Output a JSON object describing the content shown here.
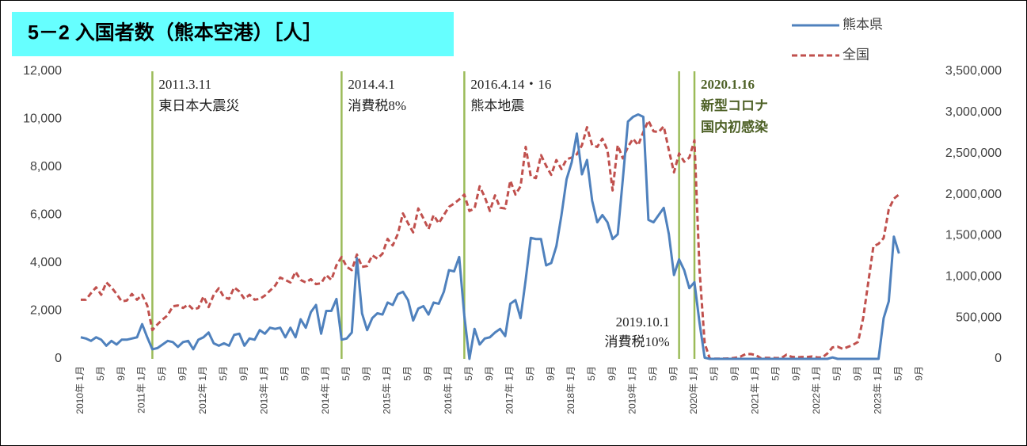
{
  "chart_data": {
    "type": "line",
    "title": "5－2 入国者数（熊本空港）［人］",
    "categories": [
      "2010年 1月",
      null,
      null,
      null,
      "5月",
      null,
      null,
      null,
      "9月",
      null,
      null,
      null,
      "2011年 1月",
      null,
      null,
      null,
      "5月",
      null,
      null,
      null,
      "9月",
      null,
      null,
      null,
      "2012年 1月",
      null,
      null,
      null,
      "5月",
      null,
      null,
      null,
      "9月",
      null,
      null,
      null,
      "2013年 1月",
      null,
      null,
      null,
      "5月",
      null,
      null,
      null,
      "9月",
      null,
      null,
      null,
      "2014年 1月",
      null,
      null,
      null,
      "5月",
      null,
      null,
      null,
      "9月",
      null,
      null,
      null,
      "2015年 1月",
      null,
      null,
      null,
      "5月",
      null,
      null,
      null,
      "9月",
      null,
      null,
      null,
      "2016年 1月",
      null,
      null,
      null,
      "5月",
      null,
      null,
      null,
      "9月",
      null,
      null,
      null,
      "2017年 1月",
      null,
      null,
      null,
      "5月",
      null,
      null,
      null,
      "9月",
      null,
      null,
      null,
      "2018年 1月",
      null,
      null,
      null,
      "5月",
      null,
      null,
      null,
      "9月",
      null,
      null,
      null,
      "2019年 1月",
      null,
      null,
      null,
      "5月",
      null,
      null,
      null,
      "9月",
      null,
      null,
      null,
      "2020年 1月",
      null,
      null,
      null,
      "5月",
      null,
      null,
      null,
      "9月",
      null,
      null,
      null,
      "2021年 1月",
      null,
      null,
      null,
      "5月",
      null,
      null,
      null,
      "9月",
      null,
      null,
      null,
      "2022年 1月",
      null,
      null,
      null,
      "5月",
      null,
      null,
      null,
      "9月",
      null,
      null,
      null,
      "2023年 1月",
      null,
      null,
      null,
      "5月",
      null,
      null,
      null,
      "9月",
      null,
      null,
      null
    ],
    "series": [
      {
        "name": "熊本県",
        "color": "#4f81bd",
        "dash": false,
        "values": [
          900,
          850,
          750,
          900,
          800,
          550,
          750,
          600,
          800,
          800,
          850,
          900,
          1450,
          900,
          400,
          450,
          600,
          750,
          700,
          500,
          700,
          750,
          400,
          800,
          900,
          1100,
          650,
          550,
          650,
          550,
          1000,
          1050,
          550,
          850,
          800,
          1200,
          1050,
          1300,
          1250,
          1300,
          900,
          1300,
          900,
          1650,
          1300,
          1950,
          2250,
          1050,
          2000,
          2000,
          2500,
          800,
          850,
          1100,
          4200,
          1900,
          1200,
          1700,
          1900,
          1850,
          2350,
          2250,
          2700,
          2800,
          2450,
          1600,
          2100,
          2200,
          1850,
          2350,
          2300,
          2800,
          3700,
          3650,
          4250,
          1800,
          0,
          1250,
          600,
          850,
          900,
          1100,
          1250,
          950,
          2300,
          2450,
          1700,
          3300,
          5050,
          5000,
          5000,
          3900,
          4000,
          4700,
          6000,
          7500,
          8200,
          9400,
          7700,
          8300,
          6600,
          5700,
          6000,
          5700,
          5000,
          5200,
          7500,
          9900,
          10100,
          10200,
          10100,
          5800,
          5700,
          6000,
          6300,
          5200,
          3500,
          4150,
          3700,
          2950,
          3200,
          1500,
          50,
          0,
          0,
          0,
          0,
          0,
          0,
          0,
          0,
          0,
          0,
          0,
          0,
          0,
          0,
          0,
          0,
          0,
          0,
          0,
          0,
          0,
          0,
          0,
          0,
          60,
          0,
          0,
          0,
          0,
          0,
          0,
          0,
          0,
          0,
          1700,
          2400,
          5100,
          4400,
          null,
          null,
          null,
          null,
          null,
          null,
          null
        ]
      },
      {
        "name": "全国",
        "color": "#c0504d",
        "dash": true,
        "axis": "y2",
        "values": [
          720000,
          720000,
          800000,
          870000,
          780000,
          930000,
          870000,
          790000,
          700000,
          710000,
          790000,
          720000,
          780000,
          650000,
          350000,
          420000,
          480000,
          530000,
          640000,
          650000,
          620000,
          660000,
          600000,
          620000,
          760000,
          630000,
          780000,
          860000,
          750000,
          730000,
          870000,
          820000,
          730000,
          780000,
          720000,
          730000,
          770000,
          830000,
          890000,
          990000,
          960000,
          930000,
          1060000,
          960000,
          930000,
          970000,
          910000,
          920000,
          1020000,
          960000,
          1140000,
          1240000,
          1120000,
          1080000,
          1270000,
          1120000,
          1130000,
          1260000,
          1220000,
          1280000,
          1460000,
          1380000,
          1520000,
          1770000,
          1650000,
          1540000,
          1830000,
          1710000,
          1580000,
          1750000,
          1650000,
          1750000,
          1850000,
          1890000,
          1940000,
          2000000,
          1800000,
          1830000,
          2100000,
          1970000,
          1800000,
          1990000,
          1840000,
          1830000,
          2170000,
          2000000,
          2100000,
          2580000,
          2220000,
          2200000,
          2480000,
          2350000,
          2240000,
          2420000,
          2310000,
          2430000,
          2450000,
          2490000,
          2600000,
          2820000,
          2600000,
          2580000,
          2680000,
          2540000,
          2050000,
          2600000,
          2440000,
          2580000,
          2680000,
          2600000,
          2760000,
          2900000,
          2770000,
          2760000,
          2830000,
          2540000,
          2270000,
          2500000,
          2400000,
          2450000,
          2660000,
          1080000,
          190000,
          3000,
          2000,
          3000,
          4000,
          5000,
          13000,
          28000,
          57000,
          59000,
          46000,
          7000,
          12000,
          11000,
          10000,
          10000,
          51000,
          25000,
          18000,
          23000,
          22000,
          29000,
          18000,
          17000,
          66000,
          140000,
          148000,
          121000,
          145000,
          170000,
          207000,
          498000,
          934000,
          1370000,
          1400000,
          1470000,
          1820000,
          1950000,
          2000000,
          null,
          null,
          null,
          null,
          null,
          null,
          null
        ]
      }
    ],
    "ylim": [
      0,
      12000
    ],
    "yticks": [
      0,
      {
        "value": 2000,
        "label": "2,000"
      },
      {
        "value": 4000,
        "label": "4,000"
      },
      {
        "value": 6000,
        "label": "6,000"
      },
      {
        "value": 8000,
        "label": "8,000"
      },
      {
        "value": 10000,
        "label": "10,000"
      },
      {
        "value": 12000,
        "label": "12,000"
      }
    ],
    "y2lim": [
      0,
      3500000
    ],
    "y2ticks": [
      0,
      {
        "value": 500000,
        "label": "500,000"
      },
      {
        "value": 1000000,
        "label": "1,000,000"
      },
      {
        "value": 1500000,
        "label": "1,500,000"
      },
      {
        "value": 2000000,
        "label": "2,000,000"
      },
      {
        "value": 2500000,
        "label": "2,500,000"
      },
      {
        "value": 3000000,
        "label": "3,000,000"
      },
      {
        "value": 3500000,
        "label": "3,500,000"
      }
    ],
    "grid": false,
    "legend": "top-right",
    "annotations": [
      {
        "lines": [
          "2011.3.11",
          "東日本大震災"
        ],
        "color": "#222222",
        "line_color": "#9bbb59",
        "bold": false,
        "position": "top"
      },
      {
        "lines": [
          "2014.4.1",
          "消費税8%"
        ],
        "color": "#222222",
        "line_color": "#9bbb59",
        "bold": false,
        "position": "top"
      },
      {
        "lines": [
          "2016.4.14・16",
          "熊本地震"
        ],
        "color": "#222222",
        "line_color": "#9bbb59",
        "bold": false,
        "position": "top"
      },
      {
        "lines": [
          "2019.10.1",
          "消費税10%"
        ],
        "color": "#222222",
        "line_color": "#9bbb59",
        "bold": false,
        "position": "bottom"
      },
      {
        "lines": [
          "2020.1.16",
          "新型コロナ",
          "国内初感染"
        ],
        "color": "#4f6228",
        "line_color": "#9bbb59",
        "bold": true,
        "position": "top"
      }
    ]
  }
}
